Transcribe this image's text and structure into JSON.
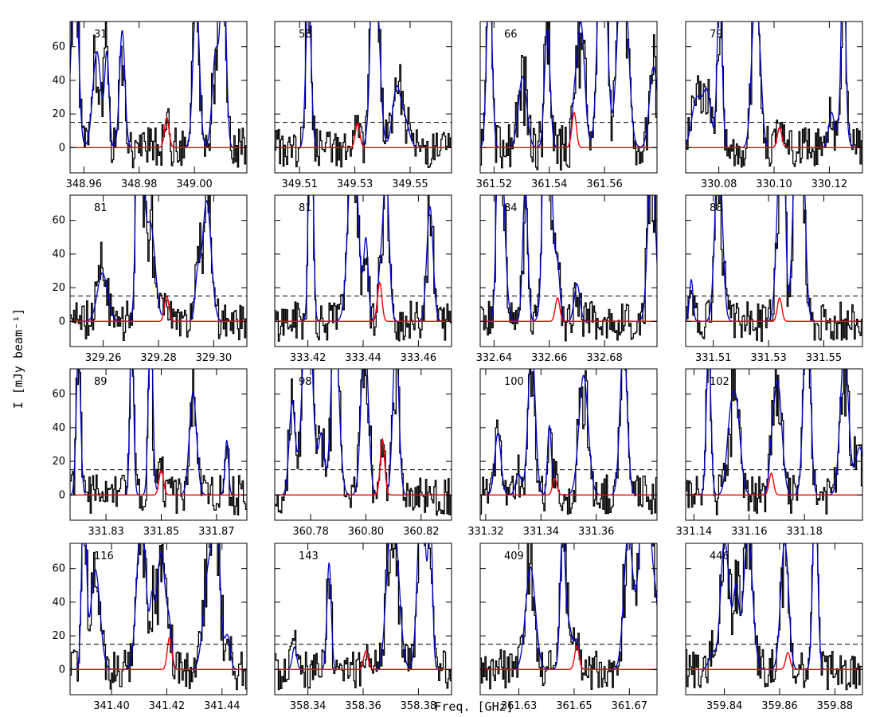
{
  "figure": {
    "ylabel": "I [mJy beam⁻¹]",
    "xlabel": "Freq. [GHz]"
  },
  "chart_data": {
    "type": "line",
    "ylim": [
      -15,
      75
    ],
    "y_ticks": [
      0,
      20,
      40,
      60
    ],
    "threshold_line": 15,
    "colors": {
      "observed": "#000000",
      "model_total": "#0000cc",
      "model_line": "#ff0000",
      "threshold": "#000000"
    },
    "panels": [
      {
        "label": "31",
        "xlim": [
          348.955,
          349.019
        ],
        "x_ticks": [
          "348.96",
          "348.98",
          "349.00"
        ],
        "line_peak": 18,
        "line_center": 348.99,
        "noise": 12,
        "seed": 31
      },
      {
        "label": "58",
        "xlim": [
          349.501,
          349.565
        ],
        "x_ticks": [
          "349.51",
          "349.53",
          "349.55"
        ],
        "line_peak": 15,
        "line_center": 349.531,
        "noise": 12,
        "seed": 58
      },
      {
        "label": "66",
        "xlim": [
          361.515,
          361.579
        ],
        "x_ticks": [
          "361.52",
          "361.54",
          "361.56"
        ],
        "line_peak": 21,
        "line_center": 361.549,
        "noise": 14,
        "seed": 66
      },
      {
        "label": "79",
        "xlim": [
          330.068,
          330.132
        ],
        "x_ticks": [
          "330.08",
          "330.10",
          "330.12"
        ],
        "line_peak": 12,
        "line_center": 330.102,
        "noise": 12,
        "seed": 79
      },
      {
        "label": "81",
        "xlim": [
          329.248,
          329.312
        ],
        "x_ticks": [
          "329.26",
          "329.28",
          "329.30"
        ],
        "line_peak": 15,
        "line_center": 329.283,
        "noise": 12,
        "seed": 811
      },
      {
        "label": "81",
        "xlim": [
          333.408,
          333.472
        ],
        "x_ticks": [
          "333.42",
          "333.44",
          "333.46"
        ],
        "line_peak": 23,
        "line_center": 333.446,
        "noise": 12,
        "seed": 812
      },
      {
        "label": "84",
        "xlim": [
          332.635,
          332.699
        ],
        "x_ticks": [
          "332.64",
          "332.66",
          "332.68"
        ],
        "line_peak": 14,
        "line_center": 332.663,
        "noise": 12,
        "seed": 84
      },
      {
        "label": "88",
        "xlim": [
          331.5,
          331.564
        ],
        "x_ticks": [
          "331.51",
          "331.53",
          "331.55"
        ],
        "line_peak": 14,
        "line_center": 331.534,
        "noise": 12,
        "seed": 88
      },
      {
        "label": "89",
        "xlim": [
          331.817,
          331.881
        ],
        "x_ticks": [
          "331.83",
          "331.85",
          "331.87"
        ],
        "line_peak": 15,
        "line_center": 331.85,
        "noise": 12,
        "seed": 89
      },
      {
        "label": "98",
        "xlim": [
          360.767,
          360.831
        ],
        "x_ticks": [
          "360.78",
          "360.80",
          "360.82"
        ],
        "line_peak": 33,
        "line_center": 360.806,
        "noise": 12,
        "seed": 98
      },
      {
        "label": "100",
        "xlim": [
          331.318,
          331.382
        ],
        "x_ticks": [
          "331.32",
          "331.34",
          "331.36"
        ],
        "line_peak": 10,
        "line_center": 331.345,
        "noise": 12,
        "seed": 100
      },
      {
        "label": "102",
        "xlim": [
          331.137,
          331.201
        ],
        "x_ticks": [
          "331.14",
          "331.16",
          "331.18"
        ],
        "line_peak": 13,
        "line_center": 331.168,
        "noise": 12,
        "seed": 102
      },
      {
        "label": "116",
        "xlim": [
          341.385,
          341.449
        ],
        "x_ticks": [
          "341.40",
          "341.42",
          "341.44"
        ],
        "line_peak": 19,
        "line_center": 341.421,
        "noise": 12,
        "seed": 116
      },
      {
        "label": "143",
        "xlim": [
          358.328,
          358.392
        ],
        "x_ticks": [
          "358.34",
          "358.36",
          "358.38"
        ],
        "line_peak": 11,
        "line_center": 358.361,
        "noise": 12,
        "seed": 143
      },
      {
        "label": "409",
        "xlim": [
          361.616,
          361.68
        ],
        "x_ticks": [
          "361.63",
          "361.65",
          "361.67"
        ],
        "line_peak": 14,
        "line_center": 361.651,
        "noise": 12,
        "seed": 409
      },
      {
        "label": "446",
        "xlim": [
          359.826,
          359.89
        ],
        "x_ticks": [
          "359.84",
          "359.86",
          "359.88"
        ],
        "line_peak": 10,
        "line_center": 359.863,
        "noise": 12,
        "seed": 446
      }
    ]
  }
}
